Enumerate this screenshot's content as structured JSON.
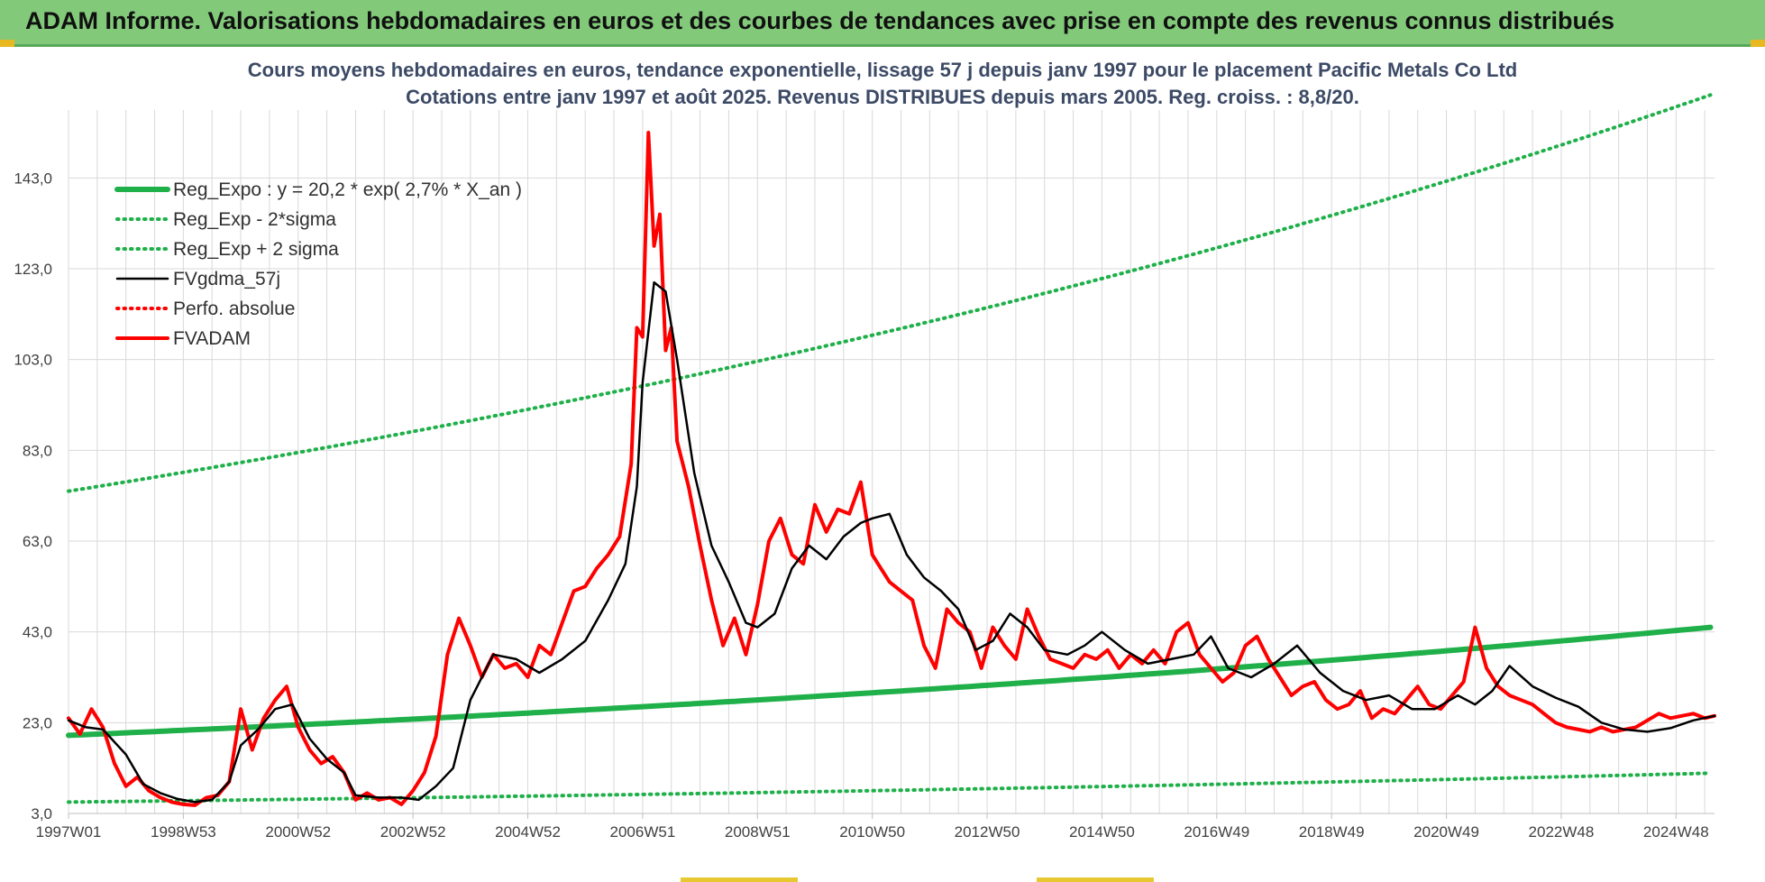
{
  "banner": {
    "title": "ADAM Informe. Valorisations hebdomadaires en euros et des courbes de tendances avec prise en compte des revenus connus distribués"
  },
  "colors": {
    "banner_bg": "#82c97a",
    "reg_expo": "#1fb04a",
    "sigma": "#1fb04a",
    "fvgdma": "#000000",
    "fvadam": "#ff0000",
    "grid": "#d9d9d9",
    "axis_text": "#404040",
    "title_text": "#3c4a66"
  },
  "chart_data": {
    "type": "line",
    "title": "Cours moyens hebdomadaires en euros, tendance exponentielle, lissage 57 j depuis janv 1997 pour le placement Pacific Metals Co Ltd",
    "subtitle": "Cotations entre janv 1997 et août 2025. Revenus DISTRIBUES depuis mars 2005. Reg. croiss. : 8,8/20.",
    "xlabel": "",
    "ylabel": "",
    "x_tick_labels": [
      "1997W01",
      "1998W53",
      "2000W52",
      "2002W52",
      "2004W52",
      "2006W51",
      "2008W51",
      "2010W50",
      "2012W50",
      "2014W50",
      "2016W49",
      "2018W49",
      "2020W49",
      "2022W48",
      "2024W48"
    ],
    "x_tick_years": [
      1997.0,
      1999.0,
      2001.0,
      2003.0,
      2005.0,
      2007.0,
      2009.0,
      2011.0,
      2013.0,
      2015.0,
      2017.0,
      2019.0,
      2021.0,
      2023.0,
      2025.0
    ],
    "x_range": [
      1997.0,
      2025.67
    ],
    "y_ticks": [
      3.0,
      23.0,
      43.0,
      63.0,
      83.0,
      103.0,
      123.0,
      143.0
    ],
    "y_tick_labels": [
      "3,0",
      "23,0",
      "43,0",
      "63,0",
      "83,0",
      "103,0",
      "123,0",
      "143,0"
    ],
    "ylim": [
      3.0,
      153.0
    ],
    "grid": true,
    "legend_position": "top-left",
    "series": [
      {
        "name": "Reg_Expo : y = 20,2 * exp( 2,7% *  X_an )",
        "style": "solid-thick",
        "color": "#1fb04a",
        "x": [
          1997.0,
          2001.0,
          2005.0,
          2009.0,
          2013.0,
          2017.0,
          2021.0,
          2025.67
        ],
        "values": [
          20.2,
          22.5,
          25.1,
          28.0,
          31.2,
          34.8,
          38.8,
          44.1
        ]
      },
      {
        "name": "Reg_Exp - 2*sigma",
        "style": "dotted",
        "color": "#1fb04a",
        "x": [
          1997.0,
          2001.0,
          2005.0,
          2009.0,
          2013.0,
          2017.0,
          2021.0,
          2025.67
        ],
        "values": [
          5.5,
          6.1,
          6.8,
          7.6,
          8.4,
          9.4,
          10.5,
          11.9
        ]
      },
      {
        "name": "Reg_Exp + 2 sigma",
        "style": "dotted",
        "color": "#1fb04a",
        "x": [
          1997.0,
          2001.0,
          2005.0,
          2009.0,
          2013.0,
          2017.0,
          2021.0,
          2025.67
        ],
        "values": [
          74.0,
          82.5,
          92.0,
          102.6,
          114.4,
          127.6,
          142.3,
          161.6
        ]
      },
      {
        "name": "FVgdma_57j",
        "style": "solid",
        "color": "#000000",
        "x": [
          1997.0,
          1997.3,
          1997.6,
          1998.0,
          1998.3,
          1998.6,
          1998.9,
          1999.2,
          1999.5,
          1999.8,
          2000.0,
          2000.3,
          2000.6,
          2000.9,
          2001.2,
          2001.5,
          2001.8,
          2002.0,
          2002.4,
          2002.8,
          2003.1,
          2003.4,
          2003.7,
          2004.0,
          2004.4,
          2004.8,
          2005.2,
          2005.6,
          2006.0,
          2006.4,
          2006.7,
          2006.9,
          2007.0,
          2007.2,
          2007.4,
          2007.6,
          2007.9,
          2008.2,
          2008.5,
          2008.8,
          2009.0,
          2009.3,
          2009.6,
          2009.9,
          2010.2,
          2010.5,
          2010.8,
          2011.0,
          2011.3,
          2011.6,
          2011.9,
          2012.2,
          2012.5,
          2012.8,
          2013.1,
          2013.4,
          2013.7,
          2014.0,
          2014.4,
          2014.7,
          2015.0,
          2015.4,
          2015.8,
          2016.2,
          2016.6,
          2016.9,
          2017.2,
          2017.6,
          2018.0,
          2018.4,
          2018.8,
          2019.2,
          2019.6,
          2020.0,
          2020.4,
          2020.8,
          2021.2,
          2021.5,
          2021.8,
          2022.1,
          2022.5,
          2022.9,
          2023.3,
          2023.7,
          2024.1,
          2024.5,
          2024.9,
          2025.3,
          2025.67
        ],
        "values": [
          23.5,
          22.0,
          21.5,
          16.0,
          9.5,
          7.5,
          6.2,
          5.5,
          6.0,
          10.0,
          18.0,
          21.5,
          26.0,
          27.0,
          19.5,
          15.0,
          12.0,
          7.0,
          6.5,
          6.5,
          6.0,
          9.0,
          13.0,
          28.0,
          38.0,
          37.0,
          34.0,
          37.0,
          41.0,
          50.0,
          58.0,
          75.0,
          98.0,
          120.0,
          118.0,
          103.0,
          78.0,
          62.0,
          54.0,
          45.0,
          44.0,
          47.0,
          57.0,
          62.0,
          59.0,
          64.0,
          67.0,
          68.0,
          69.0,
          60.0,
          55.0,
          52.0,
          48.0,
          39.0,
          41.0,
          47.0,
          44.0,
          39.0,
          38.0,
          40.0,
          43.0,
          39.0,
          36.0,
          37.0,
          38.0,
          42.0,
          35.0,
          33.0,
          36.0,
          40.0,
          34.0,
          30.0,
          28.0,
          29.0,
          26.0,
          26.0,
          29.0,
          27.0,
          30.0,
          35.5,
          31.0,
          28.5,
          26.5,
          23.0,
          21.5,
          21.0,
          21.8,
          23.5,
          24.5
        ]
      },
      {
        "name": "Perfo. absolue",
        "style": "dotted",
        "color": "#ff0000",
        "x": [],
        "values": []
      },
      {
        "name": "FVADAM",
        "style": "solid-thick",
        "color": "#ff0000",
        "x": [
          1997.0,
          1997.2,
          1997.4,
          1997.6,
          1997.8,
          1998.0,
          1998.2,
          1998.4,
          1998.6,
          1998.8,
          1999.0,
          1999.2,
          1999.4,
          1999.6,
          1999.8,
          2000.0,
          2000.2,
          2000.4,
          2000.6,
          2000.8,
          2001.0,
          2001.2,
          2001.4,
          2001.6,
          2001.8,
          2002.0,
          2002.2,
          2002.4,
          2002.6,
          2002.8,
          2003.0,
          2003.2,
          2003.4,
          2003.6,
          2003.8,
          2004.0,
          2004.2,
          2004.4,
          2004.6,
          2004.8,
          2005.0,
          2005.2,
          2005.4,
          2005.6,
          2005.8,
          2006.0,
          2006.2,
          2006.4,
          2006.6,
          2006.8,
          2006.9,
          2007.0,
          2007.1,
          2007.2,
          2007.3,
          2007.4,
          2007.5,
          2007.6,
          2007.8,
          2008.0,
          2008.2,
          2008.4,
          2008.6,
          2008.8,
          2009.0,
          2009.2,
          2009.4,
          2009.6,
          2009.8,
          2010.0,
          2010.2,
          2010.4,
          2010.6,
          2010.8,
          2011.0,
          2011.1,
          2011.3,
          2011.5,
          2011.7,
          2011.9,
          2012.1,
          2012.3,
          2012.5,
          2012.7,
          2012.9,
          2013.1,
          2013.3,
          2013.5,
          2013.7,
          2013.9,
          2014.1,
          2014.3,
          2014.5,
          2014.7,
          2014.9,
          2015.1,
          2015.3,
          2015.5,
          2015.7,
          2015.9,
          2016.1,
          2016.3,
          2016.5,
          2016.7,
          2016.9,
          2017.1,
          2017.3,
          2017.5,
          2017.7,
          2017.9,
          2018.1,
          2018.3,
          2018.5,
          2018.7,
          2018.9,
          2019.1,
          2019.3,
          2019.5,
          2019.7,
          2019.9,
          2020.1,
          2020.3,
          2020.5,
          2020.7,
          2020.9,
          2021.1,
          2021.3,
          2021.5,
          2021.7,
          2021.9,
          2022.1,
          2022.3,
          2022.5,
          2022.7,
          2022.9,
          2023.1,
          2023.3,
          2023.5,
          2023.7,
          2023.9,
          2024.1,
          2024.3,
          2024.5,
          2024.7,
          2024.9,
          2025.1,
          2025.3,
          2025.5,
          2025.67
        ],
        "values": [
          24.0,
          20.5,
          26.0,
          22.0,
          14.0,
          9.0,
          11.0,
          8.0,
          6.5,
          5.5,
          5.0,
          4.8,
          6.5,
          7.0,
          10.0,
          26.0,
          17.0,
          24.0,
          28.0,
          31.0,
          22.0,
          17.0,
          14.0,
          15.5,
          12.0,
          6.0,
          7.5,
          6.0,
          6.5,
          5.0,
          8.0,
          12.0,
          20.0,
          38.0,
          46.0,
          40.0,
          33.0,
          38.0,
          35.0,
          36.0,
          33.0,
          40.0,
          38.0,
          45.0,
          52.0,
          53.0,
          57.0,
          60.0,
          64.0,
          80.0,
          110.0,
          108.0,
          153.0,
          128.0,
          135.0,
          105.0,
          110.0,
          85.0,
          75.0,
          62.0,
          50.0,
          40.0,
          46.0,
          38.0,
          49.0,
          63.0,
          68.0,
          60.0,
          58.0,
          71.0,
          65.0,
          70.0,
          69.0,
          76.0,
          60.0,
          58.0,
          54.0,
          52.0,
          50.0,
          40.0,
          35.0,
          48.0,
          45.0,
          43.0,
          35.0,
          44.0,
          40.0,
          37.0,
          48.0,
          42.0,
          37.0,
          36.0,
          35.0,
          38.0,
          37.0,
          39.0,
          35.0,
          38.0,
          36.0,
          39.0,
          36.0,
          43.0,
          45.0,
          38.0,
          35.0,
          32.0,
          34.0,
          40.0,
          42.0,
          37.0,
          33.0,
          29.0,
          31.0,
          32.0,
          28.0,
          26.0,
          27.0,
          30.0,
          24.0,
          26.0,
          25.0,
          28.0,
          31.0,
          27.0,
          26.0,
          29.0,
          32.0,
          44.0,
          35.0,
          31.0,
          29.0,
          28.0,
          27.0,
          25.0,
          23.0,
          22.0,
          21.5,
          21.0,
          22.0,
          21.0,
          21.5,
          22.0,
          23.5,
          25.0,
          24.0,
          24.5,
          25.0,
          24.0,
          24.5
        ]
      }
    ]
  }
}
